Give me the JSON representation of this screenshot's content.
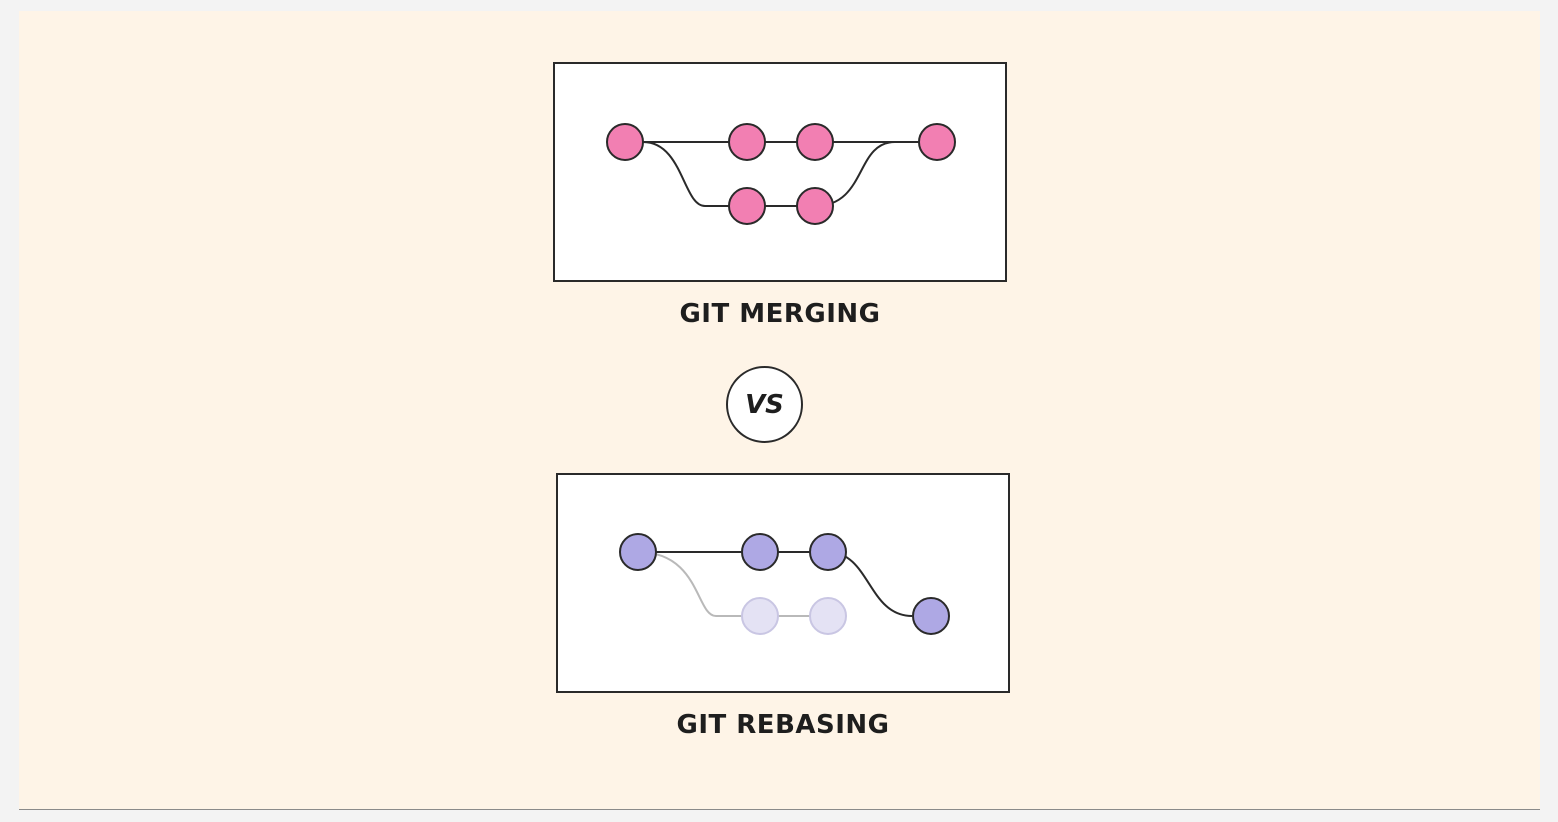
{
  "merging": {
    "caption": "GIT MERGING",
    "node_color": "#f27fb2"
  },
  "vs_label": "VS",
  "rebasing": {
    "caption": "GIT REBASING",
    "node_color": "#aea8e4",
    "faded_node_color": "#e4e2f4"
  },
  "colors": {
    "background": "#fef4e7",
    "panel": "#ffffff",
    "line": "#2a2a2a",
    "faded_line": "#b9b9b9"
  }
}
